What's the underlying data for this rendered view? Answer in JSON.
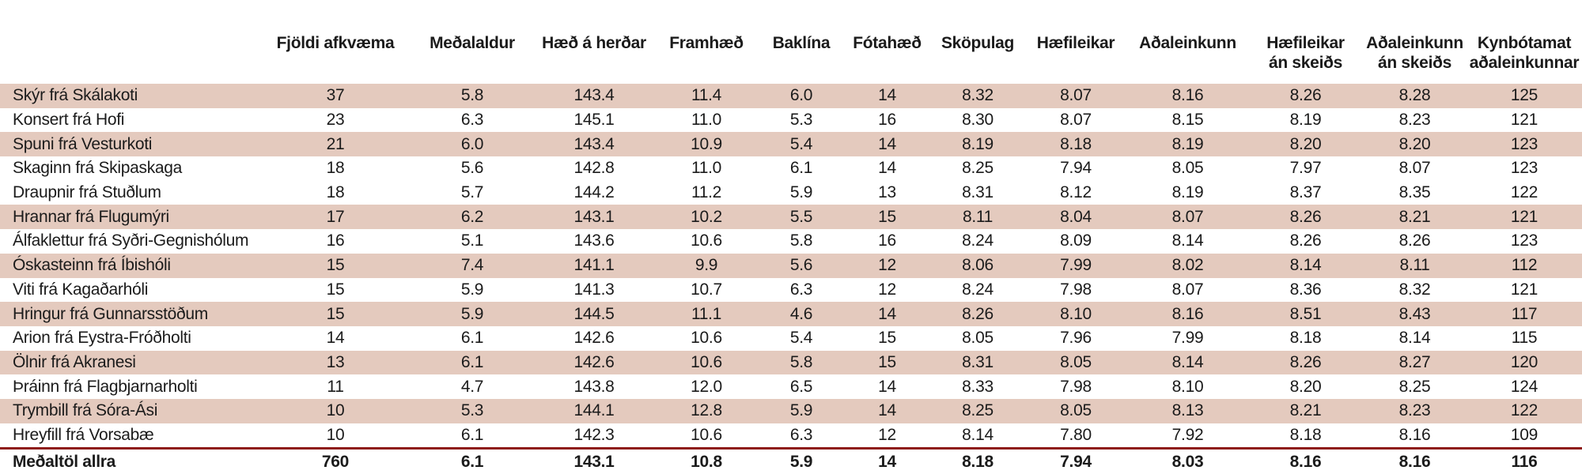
{
  "table": {
    "columns": [
      {
        "id": "name",
        "label": ""
      },
      {
        "id": "fjoldi_afkvaema",
        "label": "Fjöldi afkvæma"
      },
      {
        "id": "medalaldur",
        "label": "Meðalaldur"
      },
      {
        "id": "haed_a_herdar",
        "label": "Hæð á herðar"
      },
      {
        "id": "framhaed",
        "label": "Framhæð"
      },
      {
        "id": "baklina",
        "label": "Baklína"
      },
      {
        "id": "fotahaed",
        "label": "Fótahæð"
      },
      {
        "id": "skopulag",
        "label": "Sköpulag"
      },
      {
        "id": "haefileikar",
        "label": "Hæfileikar"
      },
      {
        "id": "adaleinkunn",
        "label": "Aðaleinkunn"
      },
      {
        "id": "haefileikar_an_skeids",
        "label": "Hæfileikar",
        "label2": "án skeiðs"
      },
      {
        "id": "adaleinkunn_an_skeids",
        "label": "Aðaleinkunn",
        "label2": "án skeiðs"
      },
      {
        "id": "kynbotamat",
        "label": "Kynbótamat",
        "label2": "aðaleinkunnar"
      }
    ],
    "rows": [
      {
        "name": "Skýr frá Skálakoti",
        "values": [
          "37",
          "5.8",
          "143.4",
          "11.4",
          "6.0",
          "14",
          "8.32",
          "8.07",
          "8.16",
          "8.26",
          "8.28",
          "125"
        ],
        "shaded": true,
        "total": false
      },
      {
        "name": "Konsert frá Hofi",
        "values": [
          "23",
          "6.3",
          "145.1",
          "11.0",
          "5.3",
          "16",
          "8.30",
          "8.07",
          "8.15",
          "8.19",
          "8.23",
          "121"
        ],
        "shaded": false,
        "total": false
      },
      {
        "name": "Spuni frá Vesturkoti",
        "values": [
          "21",
          "6.0",
          "143.4",
          "10.9",
          "5.4",
          "14",
          "8.19",
          "8.18",
          "8.19",
          "8.20",
          "8.20",
          "123"
        ],
        "shaded": true,
        "total": false
      },
      {
        "name": "Skaginn frá Skipaskaga",
        "values": [
          "18",
          "5.6",
          "142.8",
          "11.0",
          "6.1",
          "14",
          "8.25",
          "7.94",
          "8.05",
          "7.97",
          "8.07",
          "123"
        ],
        "shaded": false,
        "total": false
      },
      {
        "name": "Draupnir frá Stuðlum",
        "values": [
          "18",
          "5.7",
          "144.2",
          "11.2",
          "5.9",
          "13",
          "8.31",
          "8.12",
          "8.19",
          "8.37",
          "8.35",
          "122"
        ],
        "shaded": false,
        "total": false
      },
      {
        "name": "Hrannar frá Flugumýri",
        "values": [
          "17",
          "6.2",
          "143.1",
          "10.2",
          "5.5",
          "15",
          "8.11",
          "8.04",
          "8.07",
          "8.26",
          "8.21",
          "121"
        ],
        "shaded": true,
        "total": false
      },
      {
        "name": "Álfaklettur frá Syðri-Gegnishólum",
        "values": [
          "16",
          "5.1",
          "143.6",
          "10.6",
          "5.8",
          "16",
          "8.24",
          "8.09",
          "8.14",
          "8.26",
          "8.26",
          "123"
        ],
        "shaded": false,
        "total": false
      },
      {
        "name": "Óskasteinn frá Íbishóli",
        "values": [
          "15",
          "7.4",
          "141.1",
          "9.9",
          "5.6",
          "12",
          "8.06",
          "7.99",
          "8.02",
          "8.14",
          "8.11",
          "112"
        ],
        "shaded": true,
        "total": false
      },
      {
        "name": "Viti frá Kagaðarhóli",
        "values": [
          "15",
          "5.9",
          "141.3",
          "10.7",
          "6.3",
          "12",
          "8.24",
          "7.98",
          "8.07",
          "8.36",
          "8.32",
          "121"
        ],
        "shaded": false,
        "total": false
      },
      {
        "name": "Hringur frá Gunnarsstöðum",
        "values": [
          "15",
          "5.9",
          "144.5",
          "11.1",
          "4.6",
          "14",
          "8.26",
          "8.10",
          "8.16",
          "8.51",
          "8.43",
          "117"
        ],
        "shaded": true,
        "total": false
      },
      {
        "name": "Arion frá Eystra-Fróðholti",
        "values": [
          "14",
          "6.1",
          "142.6",
          "10.6",
          "5.4",
          "15",
          "8.05",
          "7.96",
          "7.99",
          "8.18",
          "8.14",
          "115"
        ],
        "shaded": false,
        "total": false
      },
      {
        "name": "Ölnir frá Akranesi",
        "values": [
          "13",
          "6.1",
          "142.6",
          "10.6",
          "5.8",
          "15",
          "8.31",
          "8.05",
          "8.14",
          "8.26",
          "8.27",
          "120"
        ],
        "shaded": true,
        "total": false
      },
      {
        "name": "Þráinn frá Flagbjarnarholti",
        "values": [
          "11",
          "4.7",
          "143.8",
          "12.0",
          "6.5",
          "14",
          "8.33",
          "7.98",
          "8.10",
          "8.20",
          "8.25",
          "124"
        ],
        "shaded": false,
        "total": false
      },
      {
        "name": "Trymbill frá Sóra-Ási",
        "values": [
          "10",
          "5.3",
          "144.1",
          "12.8",
          "5.9",
          "14",
          "8.25",
          "8.05",
          "8.13",
          "8.21",
          "8.23",
          "122"
        ],
        "shaded": true,
        "total": false
      },
      {
        "name": "Hreyfill frá Vorsabæ",
        "values": [
          "10",
          "6.1",
          "142.3",
          "10.6",
          "6.3",
          "12",
          "8.14",
          "7.80",
          "7.92",
          "8.18",
          "8.16",
          "109"
        ],
        "shaded": false,
        "total": false
      },
      {
        "name": "Meðaltöl allra",
        "values": [
          "760",
          "6.1",
          "143.1",
          "10.8",
          "5.9",
          "14",
          "8.18",
          "7.94",
          "8.03",
          "8.16",
          "8.16",
          "116"
        ],
        "shaded": false,
        "total": true
      }
    ]
  },
  "colors": {
    "row_shade": "#e4cabe",
    "divider_red": "#8e1b18",
    "text": "#1b1b1b",
    "background": "#ffffff"
  }
}
